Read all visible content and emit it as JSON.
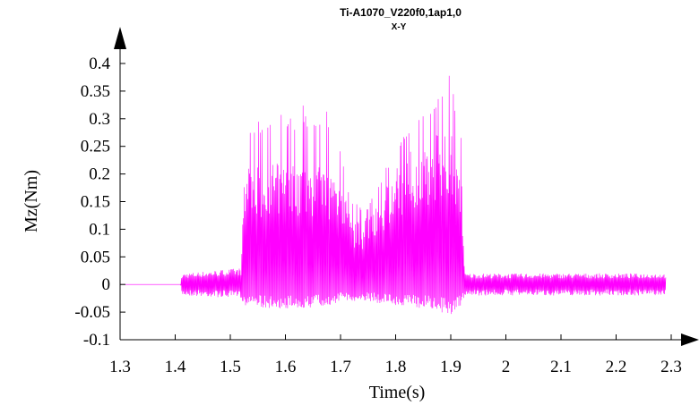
{
  "chart_data": {
    "type": "line",
    "title": "Ti-A1070_V220f0,1ap1,0",
    "subtitle": "X-Y",
    "xlabel": "Time(s)",
    "ylabel": "Mz(Nm)",
    "xlim": [
      1.3,
      2.3
    ],
    "ylim": [
      -0.1,
      0.4
    ],
    "x_ticks": [
      "1.3",
      "1.4",
      "1.5",
      "1.6",
      "1.7",
      "1.8",
      "1.9",
      "2",
      "2.1",
      "2.2",
      "2.3"
    ],
    "y_ticks": [
      "0.4",
      "0.35",
      "0.3",
      "0.25",
      "0.2",
      "0.15",
      "0.1",
      "0.05",
      "0",
      "-0.05",
      "-0.1"
    ],
    "grid": false,
    "series": [
      {
        "color": "#ff00ff",
        "envelope": [
          {
            "x": 1.3,
            "min": 0.0,
            "max": 0.0
          },
          {
            "x": 1.41,
            "min": 0.0,
            "max": 0.0
          },
          {
            "x": 1.412,
            "min": -0.02,
            "max": 0.02
          },
          {
            "x": 1.52,
            "min": -0.025,
            "max": 0.03
          },
          {
            "x": 1.525,
            "min": -0.04,
            "max": 0.2
          },
          {
            "x": 1.54,
            "min": -0.04,
            "max": 0.22
          },
          {
            "x": 1.6,
            "min": -0.045,
            "max": 0.22
          },
          {
            "x": 1.68,
            "min": -0.04,
            "max": 0.21
          },
          {
            "x": 1.7,
            "min": -0.03,
            "max": 0.2
          },
          {
            "x": 1.72,
            "min": -0.03,
            "max": 0.12
          },
          {
            "x": 1.74,
            "min": -0.03,
            "max": 0.11
          },
          {
            "x": 1.78,
            "min": -0.035,
            "max": 0.18
          },
          {
            "x": 1.82,
            "min": -0.04,
            "max": 0.24
          },
          {
            "x": 1.86,
            "min": -0.045,
            "max": 0.26
          },
          {
            "x": 1.9,
            "min": -0.055,
            "max": 0.3
          },
          {
            "x": 1.92,
            "min": -0.04,
            "max": 0.2
          },
          {
            "x": 1.925,
            "min": -0.02,
            "max": 0.02
          },
          {
            "x": 2.0,
            "min": -0.02,
            "max": 0.02
          },
          {
            "x": 2.1,
            "min": -0.02,
            "max": 0.02
          },
          {
            "x": 2.2,
            "min": -0.02,
            "max": 0.02
          },
          {
            "x": 2.29,
            "min": -0.02,
            "max": 0.02
          }
        ],
        "peaks": [
          {
            "x": 1.525,
            "max": 0.28
          },
          {
            "x": 1.56,
            "max": 0.31
          },
          {
            "x": 1.6,
            "max": 0.31
          },
          {
            "x": 1.65,
            "max": 0.335
          },
          {
            "x": 1.69,
            "max": 0.31
          },
          {
            "x": 1.72,
            "max": 0.15
          },
          {
            "x": 1.75,
            "max": 0.14
          },
          {
            "x": 1.8,
            "max": 0.25
          },
          {
            "x": 1.85,
            "max": 0.32
          },
          {
            "x": 1.9,
            "max": 0.385
          },
          {
            "x": 1.92,
            "max": 0.27
          }
        ]
      }
    ]
  }
}
